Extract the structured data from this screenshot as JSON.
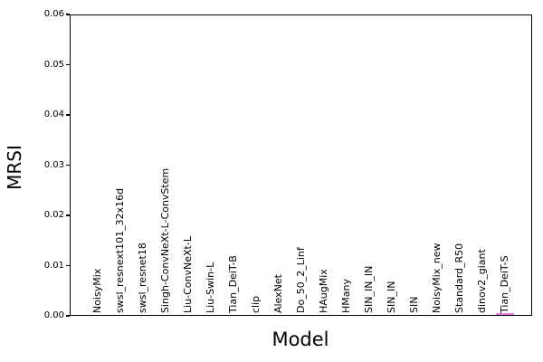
{
  "figure": {
    "background": "#ffffff",
    "axis_color": "#000000",
    "text_color": "#000000"
  },
  "chart_data": {
    "type": "bar",
    "title": "",
    "xlabel": "Model",
    "ylabel": "MRSI",
    "ylim": [
      0,
      0.06
    ],
    "grid": false,
    "legend": null,
    "yticks": [
      {
        "value": 0.0,
        "label": "0.00"
      },
      {
        "value": 0.01,
        "label": "0.01"
      },
      {
        "value": 0.02,
        "label": "0.02"
      },
      {
        "value": 0.03,
        "label": "0.03"
      },
      {
        "value": 0.04,
        "label": "0.04"
      },
      {
        "value": 0.05,
        "label": "0.05"
      },
      {
        "value": 0.06,
        "label": "0.06"
      }
    ],
    "categories": [
      "NoisyMix",
      "swsl_resnext101_32x16d",
      "swsl_resnet18",
      "Singh-ConvNeXt-L-ConvStem",
      "Liu-ConvNeXt-L",
      "Liu-Swin-L",
      "Tian_DeiT-B",
      "clip",
      "AlexNet",
      "Do_50_2_Linf",
      "HAugMix",
      "HMany",
      "SIN_IN_IN",
      "SIN_IN",
      "SIN",
      "NoisyMix_new",
      "Standard_R50",
      "dinov2_giant",
      "Tian_DeiT-S"
    ],
    "values": [
      0,
      0,
      0,
      0,
      0,
      0,
      0,
      0,
      0,
      0,
      0,
      0,
      0,
      0,
      0,
      0,
      0,
      0,
      0.0004
    ],
    "bar_color": "#df7fd6",
    "tick_label_orientation": "vertical"
  }
}
